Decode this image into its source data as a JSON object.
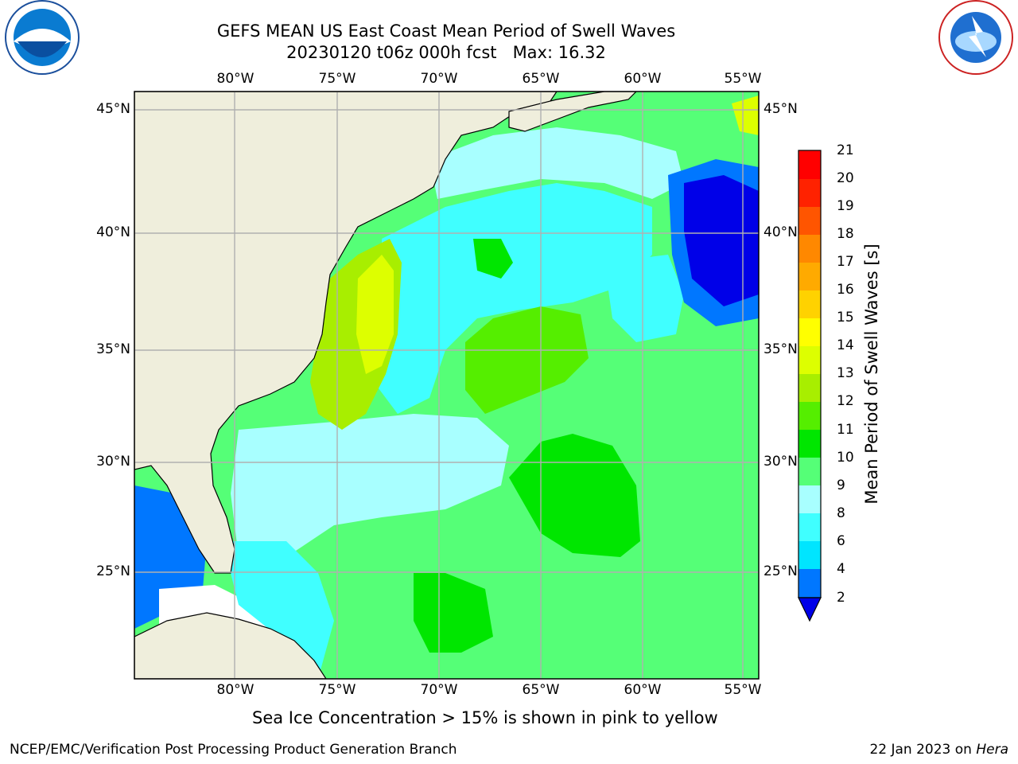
{
  "title": {
    "line1": "GEFS MEAN US East Coast Mean Period of Swell Waves",
    "line2": "20230120 t06z 000h fcst   Max: 16.32"
  },
  "map": {
    "lon_labels": [
      "80°W",
      "75°W",
      "70°W",
      "65°W",
      "60°W",
      "55°W"
    ],
    "lat_labels": [
      "45°N",
      "40°N",
      "35°N",
      "30°N",
      "25°N"
    ],
    "land_color": "#efeedc",
    "grid_color": "#b0b0b0"
  },
  "colorbar": {
    "label": "Mean Period of Swell Waves [s]",
    "ticks": [
      "21",
      "20",
      "19",
      "18",
      "17",
      "16",
      "15",
      "14",
      "13",
      "12",
      "11",
      "10",
      "9",
      "8",
      "6",
      "4",
      "2"
    ],
    "colors": [
      "#0000e8",
      "#0077ff",
      "#00e5ff",
      "#40ffff",
      "#a8ffff",
      "#55ff77",
      "#00e600",
      "#55ee00",
      "#a8ee00",
      "#ddff00",
      "#ffff00",
      "#ffd200",
      "#ffaa00",
      "#ff8800",
      "#ff5500",
      "#ff2200",
      "#ff0000"
    ]
  },
  "caption": "Sea Ice Concentration > 15% is shown in pink to yellow",
  "credit": "NCEP/EMC/Verification Post Processing Product Generation Branch",
  "stamp": {
    "date": "22 Jan 2023 on",
    "host": "Hera"
  },
  "logos": {
    "left": "NOAA",
    "right": "NATIONAL WEATHER SERVICE"
  }
}
